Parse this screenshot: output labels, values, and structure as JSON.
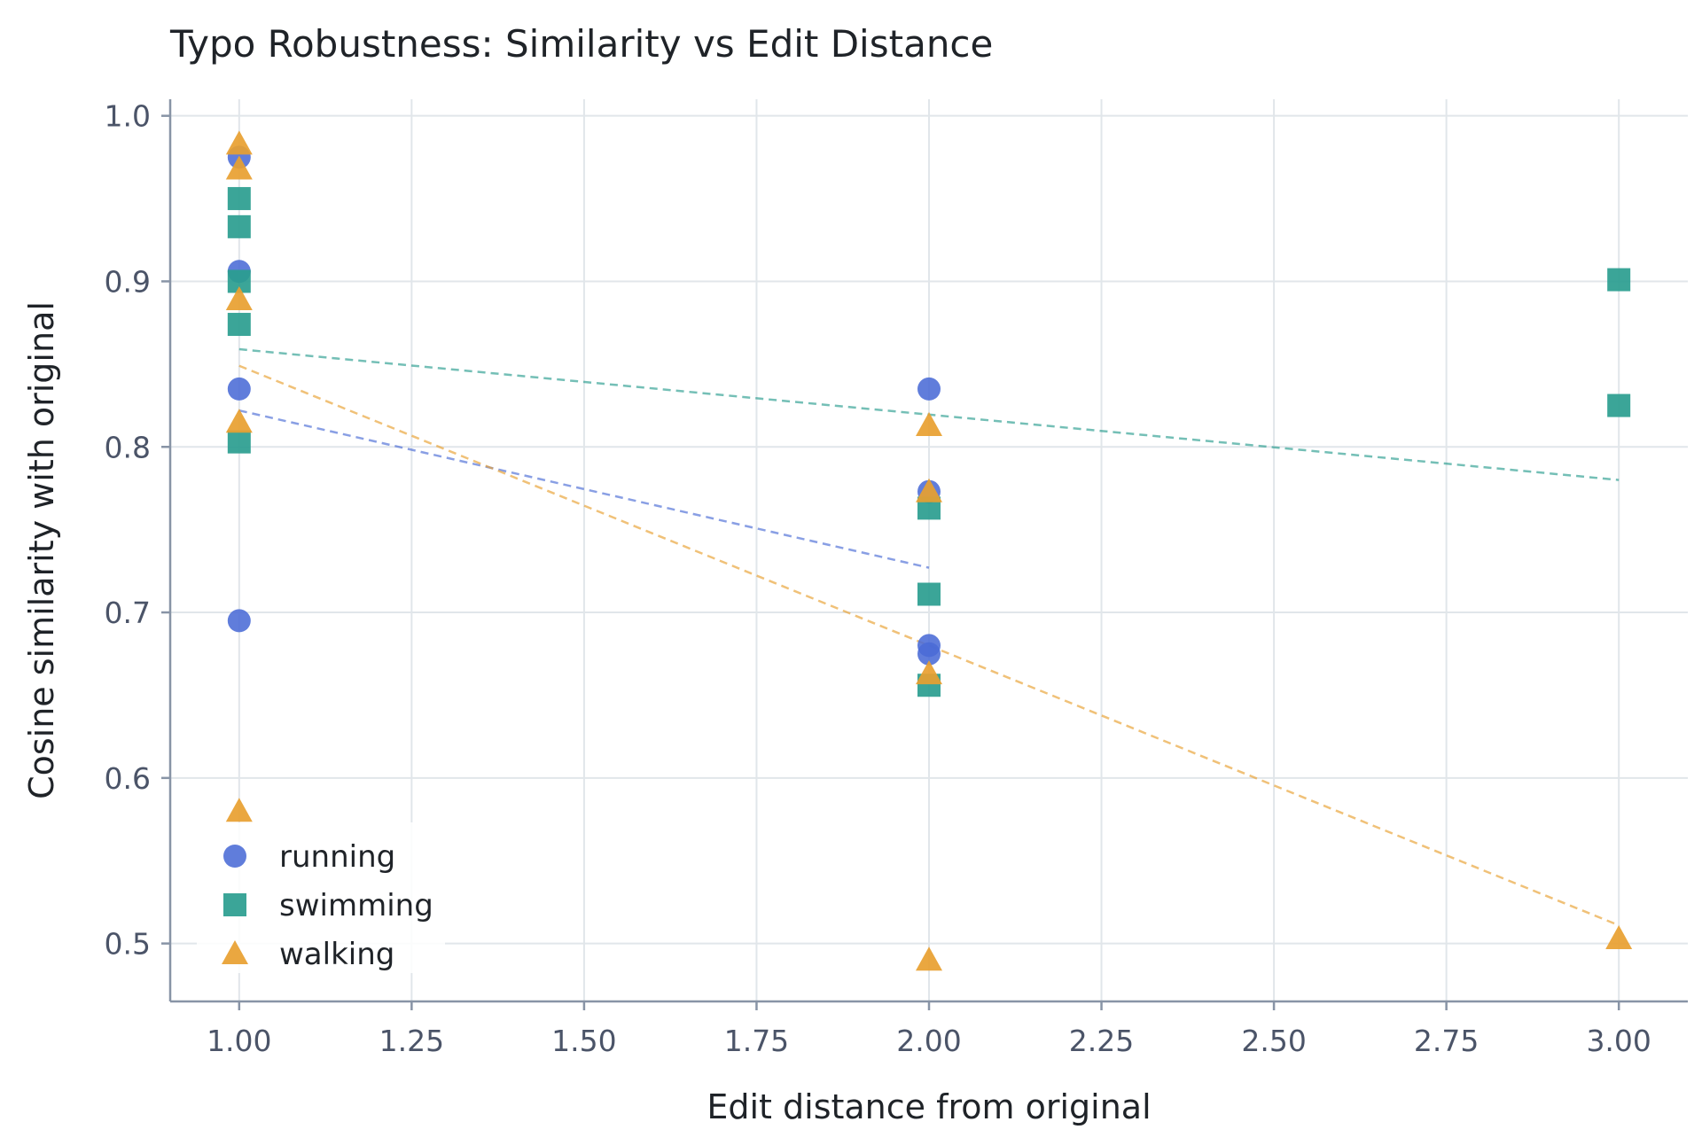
{
  "chart_data": {
    "type": "scatter",
    "title": "Typo Robustness: Similarity vs Edit Distance",
    "xlabel": "Edit distance from original",
    "ylabel": "Cosine similarity with original",
    "xlim": [
      0.9,
      3.1
    ],
    "ylim": [
      0.465,
      1.01
    ],
    "xticks": [
      1.0,
      1.25,
      1.5,
      1.75,
      2.0,
      2.25,
      2.5,
      2.75,
      3.0
    ],
    "xtick_labels": [
      "1.00",
      "1.25",
      "1.50",
      "1.75",
      "2.00",
      "2.25",
      "2.50",
      "2.75",
      "3.00"
    ],
    "yticks": [
      0.5,
      0.6,
      0.7,
      0.8,
      0.9,
      1.0
    ],
    "ytick_labels": [
      "0.5",
      "0.6",
      "0.7",
      "0.8",
      "0.9",
      "1.0"
    ],
    "grid": true,
    "legend_position": "lower-left",
    "series": [
      {
        "name": "running",
        "marker": "circle",
        "color": "#4a6bd6",
        "points": [
          [
            1,
            0.975
          ],
          [
            1,
            0.906
          ],
          [
            1,
            0.835
          ],
          [
            1,
            0.695
          ],
          [
            2,
            0.835
          ],
          [
            2,
            0.773
          ],
          [
            2,
            0.68
          ],
          [
            2,
            0.675
          ]
        ],
        "trend": [
          [
            1,
            0.822
          ],
          [
            2,
            0.727
          ]
        ]
      },
      {
        "name": "swimming",
        "marker": "square",
        "color": "#2a9d8f",
        "points": [
          [
            1,
            0.95
          ],
          [
            1,
            0.933
          ],
          [
            1,
            0.9
          ],
          [
            1,
            0.874
          ],
          [
            1,
            0.803
          ],
          [
            2,
            0.763
          ],
          [
            2,
            0.711
          ],
          [
            2,
            0.656
          ],
          [
            3,
            0.901
          ],
          [
            3,
            0.825
          ]
        ],
        "trend": [
          [
            1,
            0.859
          ],
          [
            3,
            0.78
          ]
        ]
      },
      {
        "name": "walking",
        "marker": "triangle",
        "color": "#e8a030",
        "points": [
          [
            1,
            0.983
          ],
          [
            1,
            0.968
          ],
          [
            1,
            0.889
          ],
          [
            1,
            0.815
          ],
          [
            1,
            0.58
          ],
          [
            2,
            0.813
          ],
          [
            2,
            0.773
          ],
          [
            2,
            0.663
          ],
          [
            2,
            0.49
          ],
          [
            3,
            0.503
          ]
        ],
        "trend": [
          [
            1,
            0.849
          ],
          [
            3,
            0.511
          ]
        ]
      }
    ]
  }
}
